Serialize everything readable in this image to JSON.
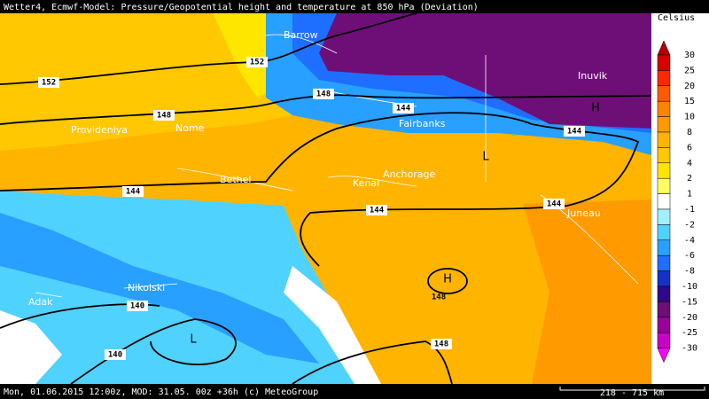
{
  "header": {
    "title": "Wetter4, Ecmwf-Model: Pressure/Geopotential height and temperature at 850 hPa (Deviation)"
  },
  "map": {
    "cities": [
      "Barrow",
      "Inuvik",
      "Fairbanks",
      "Provideniya",
      "Nome",
      "Bethel",
      "Kenai",
      "Anchorage",
      "Juneau",
      "Nikolski",
      "Adak"
    ],
    "contour_labels": [
      "152",
      "152",
      "148",
      "148",
      "148",
      "144",
      "144",
      "144",
      "144",
      "144",
      "140",
      "140",
      "148"
    ],
    "pressure_centers": [
      "H",
      "L",
      "H",
      "L"
    ]
  },
  "legend": {
    "unit": "Celsius",
    "labels": [
      "30",
      "25",
      "20",
      "15",
      "10",
      "8",
      "6",
      "4",
      "2",
      "1",
      "-1",
      "-2",
      "-4",
      "-6",
      "-8",
      "-10",
      "-15",
      "-20",
      "-25",
      "-30"
    ],
    "colors": [
      "#b40000",
      "#d80000",
      "#ff2800",
      "#ff5a00",
      "#ff8200",
      "#ff9b00",
      "#ffb400",
      "#ffc800",
      "#ffe600",
      "#ffff64",
      "#ffffff",
      "#a0f0ff",
      "#50d2ff",
      "#28a0ff",
      "#1e6eff",
      "#1432c8",
      "#2d0a8c",
      "#6e0f78",
      "#9a009a",
      "#c800c8",
      "#ff00ff"
    ]
  },
  "footer": {
    "text": "Mon, 01.06.2015 12:00z, MOD: 31.05. 00z +36h (c) MeteoGroup",
    "scale": "218 - 715 km"
  }
}
